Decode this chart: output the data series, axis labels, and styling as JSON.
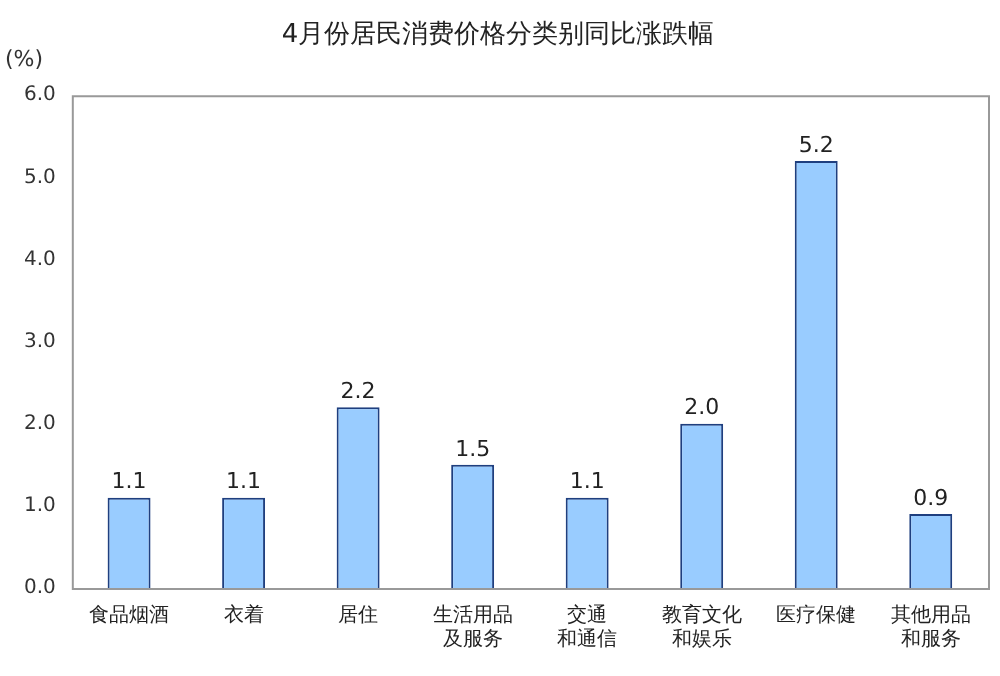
{
  "chart_data": {
    "type": "bar",
    "title": "4月份居民消费价格分类别同比涨跌幅",
    "ylabel": "(%)",
    "categories": [
      "食品烟酒",
      "衣着",
      "居住",
      "生活用品及服务",
      "交通和通信",
      "教育文化和娱乐",
      "医疗保健",
      "其他用品和服务"
    ],
    "values": [
      1.1,
      1.1,
      2.2,
      1.5,
      1.1,
      2.0,
      5.2,
      0.9
    ],
    "color": "#99ccff",
    "ylim": [
      0,
      6
    ],
    "yticks": [
      {
        "value": 0,
        "label": "0.0"
      },
      {
        "value": 1,
        "label": "1.0"
      },
      {
        "value": 2,
        "label": "2.0"
      },
      {
        "value": 3,
        "label": "3.0"
      },
      {
        "value": 4,
        "label": "4.0"
      },
      {
        "value": 5,
        "label": "5.0"
      },
      {
        "value": 6,
        "label": "6.0"
      }
    ],
    "value_labels": [
      "1.1",
      "1.1",
      "2.2",
      "1.5",
      "1.1",
      "2.0",
      "5.2",
      "0.9"
    ],
    "grid": false,
    "legend": false
  }
}
